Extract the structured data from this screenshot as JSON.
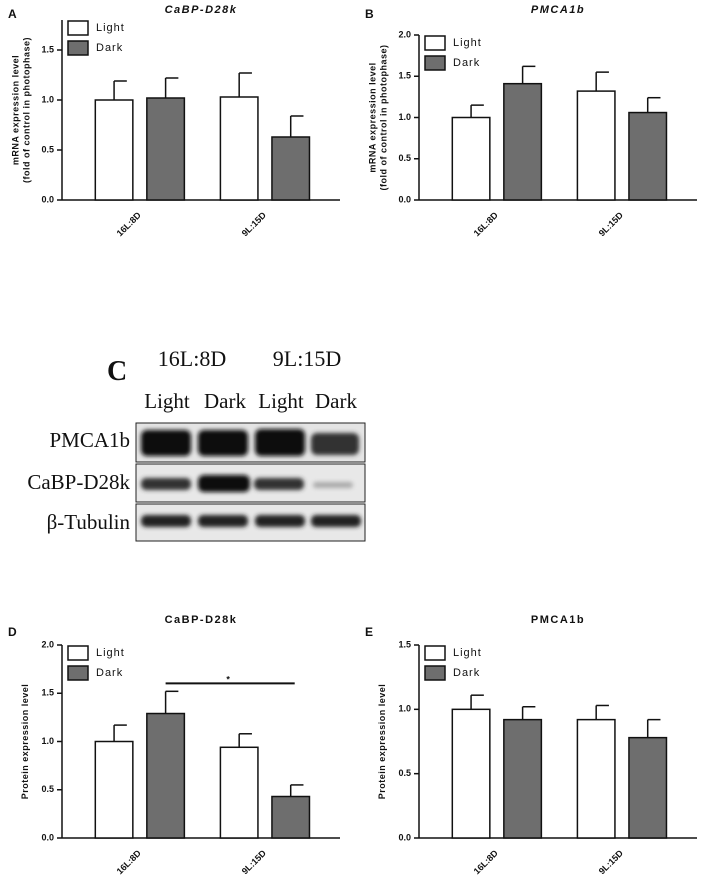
{
  "chart_data": [
    {
      "type": "bar",
      "label": "A",
      "title": "CaBP-D28k",
      "ylabel": [
        "mRNA expression level",
        "(fold of control in photophase)"
      ],
      "categories": [
        "16L:8D",
        "9L:15D"
      ],
      "series": [
        {
          "name": "Light",
          "color": "#ffffff",
          "values": [
            1.0,
            1.03
          ],
          "errors": [
            0.19,
            0.24
          ]
        },
        {
          "name": "Dark",
          "color": "#6e6e6e",
          "values": [
            1.02,
            0.63
          ],
          "errors": [
            0.2,
            0.21
          ]
        }
      ],
      "ylim": [
        0,
        1.8
      ],
      "yticks": [
        {
          "value": 0,
          "label": "0.0"
        },
        0.5,
        {
          "value": 1,
          "label": "1.0"
        },
        1.5
      ]
    },
    {
      "type": "bar",
      "label": "B",
      "title": "PMCA1b",
      "ylabel": [
        "mRNA expression level",
        "(fold of control in photophase)"
      ],
      "categories": [
        "16L:8D",
        "9L:15D"
      ],
      "series": [
        {
          "name": "Light",
          "color": "#ffffff",
          "values": [
            1.0,
            1.32
          ],
          "errors": [
            0.15,
            0.23
          ]
        },
        {
          "name": "Dark",
          "color": "#6e6e6e",
          "values": [
            1.41,
            1.06
          ],
          "errors": [
            0.21,
            0.18
          ]
        }
      ],
      "ylim": [
        0,
        2
      ],
      "yticks": [
        {
          "value": 0,
          "label": "0.0"
        },
        0.5,
        {
          "value": 1,
          "label": "1.0"
        },
        1.5,
        {
          "value": 2,
          "label": "2.0"
        }
      ]
    },
    {
      "type": "bar",
      "label": "D",
      "title": "CaBP-D28k",
      "ylabel": [
        "Protein expression level"
      ],
      "categories": [
        "16L:8D",
        "9L:15D"
      ],
      "series": [
        {
          "name": "Light",
          "color": "#ffffff",
          "values": [
            1.0,
            0.94
          ],
          "errors": [
            0.17,
            0.14
          ]
        },
        {
          "name": "Dark",
          "color": "#6e6e6e",
          "values": [
            1.29,
            0.43
          ],
          "errors": [
            0.23,
            0.12
          ]
        }
      ],
      "annotation": "*",
      "ylim": [
        0,
        2
      ],
      "yticks": [
        {
          "value": 0,
          "label": "0.0"
        },
        0.5,
        {
          "value": 1,
          "label": "1.0"
        },
        1.5,
        {
          "value": 2,
          "label": "2.0"
        }
      ]
    },
    {
      "type": "bar",
      "label": "E",
      "title": "PMCA1b",
      "ylabel": [
        "Protein expression level"
      ],
      "categories": [
        "16L:8D",
        "9L:15D"
      ],
      "series": [
        {
          "name": "Light",
          "color": "#ffffff",
          "values": [
            1.0,
            0.92
          ],
          "errors": [
            0.11,
            0.11
          ]
        },
        {
          "name": "Dark",
          "color": "#6e6e6e",
          "values": [
            0.92,
            0.78
          ],
          "errors": [
            0.1,
            0.14
          ]
        }
      ],
      "ylim": [
        0,
        1.5
      ],
      "yticks": [
        {
          "value": 0,
          "label": "0.0"
        },
        0.5,
        {
          "value": 1,
          "label": "1.0"
        },
        1.5
      ]
    }
  ],
  "blot": {
    "label": "C",
    "conditions": [
      "16L:8D",
      "9L:15D"
    ],
    "lanes": [
      "Light",
      "Dark",
      "Light",
      "Dark"
    ],
    "rows": [
      "PMCA1b",
      "CaBP-D28k",
      "β-Tubulin"
    ]
  }
}
